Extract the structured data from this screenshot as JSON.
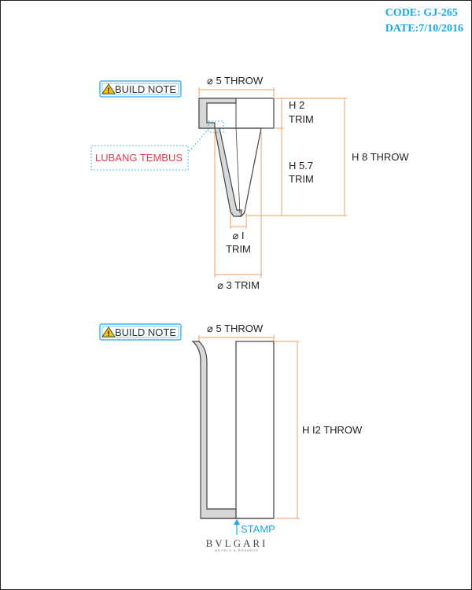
{
  "header": {
    "code": "CODE: GJ-265",
    "date": "DATE:7/10/2016"
  },
  "drawing1": {
    "build_note": "BUILD NOTE",
    "top_dim": "⌀ 5 THROW",
    "h2_line1": "H 2",
    "h2_line2": "TRIM",
    "h57_line1": "H 5.7",
    "h57_line2": "TRIM",
    "h8": "H 8 THROW",
    "hole_label": "LUBANG TEMBUS",
    "d1_line1": "⌀ I",
    "d1_line2": "TRIM",
    "d3": "⌀ 3 TRIM"
  },
  "drawing2": {
    "build_note": "BUILD NOTE",
    "top_dim": "⌀ 5 THROW",
    "h12": "H I2 THROW",
    "stamp": "STAMP"
  },
  "brand": {
    "name": "BVLGARI",
    "sub": "HOTELS & RESORTS"
  },
  "colors": {
    "accent_blue": "#1aa7e8",
    "dimension_orange": "#f0a060",
    "note_red": "#e23a4a",
    "warning_yellow": "#f5c400"
  }
}
